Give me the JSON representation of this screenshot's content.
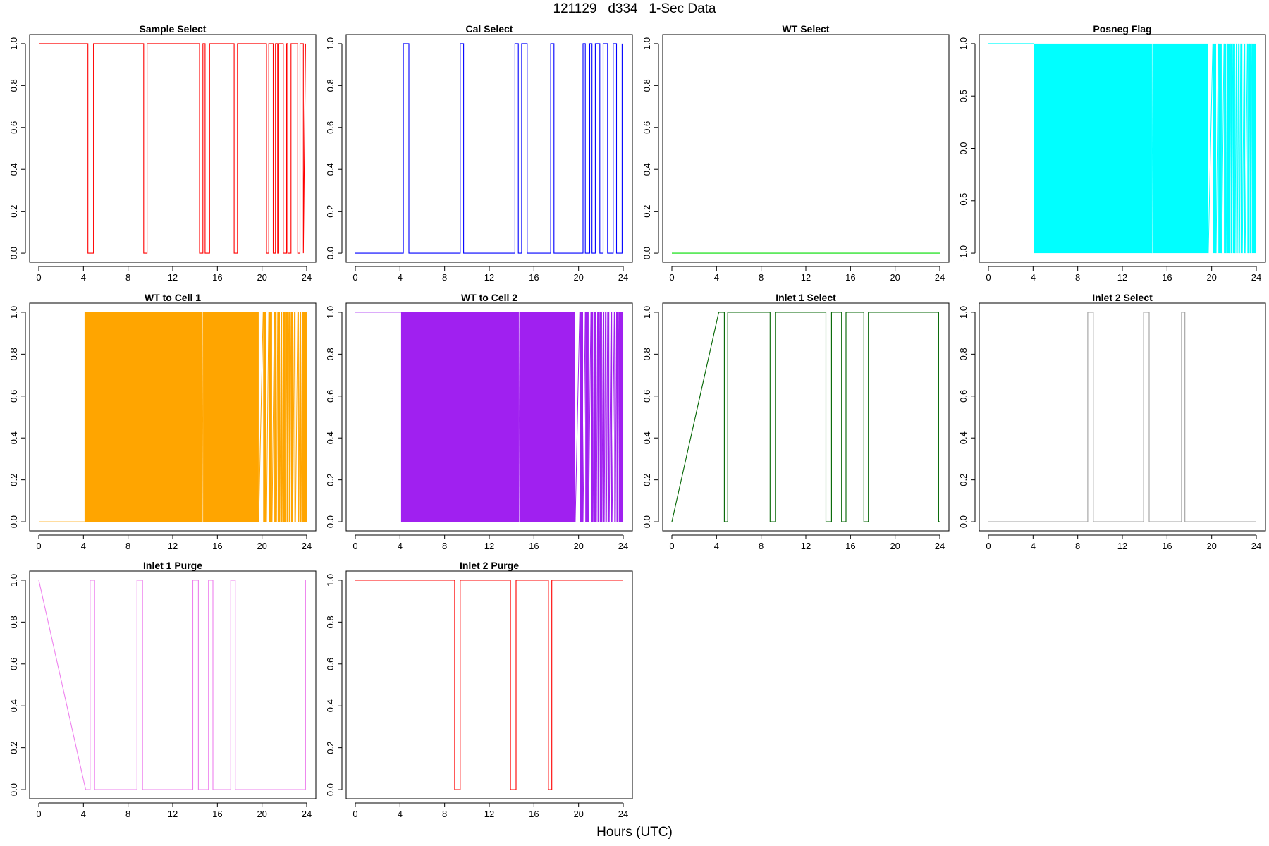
{
  "figure": {
    "title": "121129   d334   1-Sec Data",
    "xlabel": "Hours (UTC)"
  },
  "chart_data": [
    {
      "type": "line",
      "title": "Sample Select",
      "color": "#ff0000",
      "xlim": [
        0,
        24
      ],
      "ylim": [
        0,
        1
      ],
      "xticks": [
        0,
        4,
        8,
        12,
        16,
        20,
        24
      ],
      "yticks": [
        0.0,
        0.2,
        0.4,
        0.6,
        0.8,
        1.0
      ],
      "ytick_labels": [
        "0.0",
        "0.2",
        "0.4",
        "0.6",
        "0.8",
        "1.0"
      ],
      "x": [
        0,
        4.4,
        4.4,
        4.9,
        4.9,
        9.4,
        9.4,
        9.7,
        9.7,
        14.4,
        14.4,
        14.7,
        14.7,
        14.9,
        14.9,
        15.3,
        15.3,
        17.5,
        17.5,
        17.8,
        17.8,
        20.4,
        20.4,
        20.6,
        20.6,
        21.0,
        21.0,
        21.2,
        21.2,
        21.4,
        21.4,
        21.5,
        21.5,
        21.9,
        21.9,
        22.2,
        22.2,
        22.3,
        22.3,
        22.6,
        22.6,
        23.2,
        23.2,
        23.4,
        23.4,
        23.7,
        23.7,
        23.9
      ],
      "y": [
        1,
        1,
        0,
        0,
        1,
        1,
        0,
        0,
        1,
        1,
        0,
        0,
        1,
        1,
        0,
        0,
        1,
        1,
        0,
        0,
        1,
        1,
        0,
        0,
        1,
        1,
        0,
        0,
        1,
        1,
        0,
        0,
        1,
        1,
        0,
        0,
        1,
        1,
        0,
        0,
        1,
        1,
        0,
        0,
        1,
        1,
        0,
        1
      ]
    },
    {
      "type": "line",
      "title": "Cal Select",
      "color": "#0000ff",
      "xlim": [
        0,
        24
      ],
      "ylim": [
        0,
        1
      ],
      "xticks": [
        0,
        4,
        8,
        12,
        16,
        20,
        24
      ],
      "yticks": [
        0.0,
        0.2,
        0.4,
        0.6,
        0.8,
        1.0
      ],
      "ytick_labels": [
        "0.0",
        "0.2",
        "0.4",
        "0.6",
        "0.8",
        "1.0"
      ],
      "x": [
        0,
        4.3,
        4.3,
        4.8,
        4.8,
        9.4,
        9.4,
        9.7,
        9.7,
        14.3,
        14.3,
        14.6,
        14.6,
        14.9,
        14.9,
        15.4,
        15.4,
        17.5,
        17.5,
        17.8,
        17.8,
        20.4,
        20.4,
        20.6,
        20.6,
        21.0,
        21.0,
        21.2,
        21.2,
        21.5,
        21.5,
        21.9,
        21.9,
        22.2,
        22.2,
        22.6,
        22.6,
        23.1,
        23.1,
        23.4,
        23.4,
        23.9,
        23.9
      ],
      "y": [
        0,
        0,
        1,
        1,
        0,
        0,
        1,
        1,
        0,
        0,
        1,
        1,
        0,
        0,
        1,
        1,
        0,
        0,
        1,
        1,
        0,
        0,
        1,
        1,
        0,
        0,
        1,
        1,
        0,
        0,
        1,
        1,
        0,
        0,
        1,
        1,
        0,
        0,
        1,
        1,
        0,
        0,
        1
      ]
    },
    {
      "type": "line",
      "title": "WT Select",
      "color": "#00dd00",
      "xlim": [
        0,
        24
      ],
      "ylim": [
        0,
        1
      ],
      "xticks": [
        0,
        4,
        8,
        12,
        16,
        20,
        24
      ],
      "yticks": [
        0.0,
        0.2,
        0.4,
        0.6,
        0.8,
        1.0
      ],
      "ytick_labels": [
        "0.0",
        "0.2",
        "0.4",
        "0.6",
        "0.8",
        "1.0"
      ],
      "x": [
        0,
        24
      ],
      "y": [
        0,
        0
      ]
    },
    {
      "type": "area",
      "title": "Posneg Flag",
      "color": "#00ffff",
      "xlim": [
        0,
        24
      ],
      "ylim": [
        -1,
        1
      ],
      "xticks": [
        0,
        4,
        8,
        12,
        16,
        20,
        24
      ],
      "yticks": [
        -1.0,
        -0.5,
        0.0,
        0.5,
        1.0
      ],
      "ytick_labels": [
        "-1.0",
        "-0.5",
        "0.0",
        "0.5",
        "1.0"
      ],
      "baseline_value": 1,
      "baseline_range": [
        0,
        4.1
      ],
      "filled_ranges": [
        [
          4.1,
          14.65
        ],
        [
          14.72,
          19.7
        ],
        [
          20.1,
          20.4
        ],
        [
          20.6,
          20.9
        ],
        [
          21.1,
          21.3
        ],
        [
          21.4,
          21.6
        ],
        [
          21.7,
          21.8
        ],
        [
          21.9,
          22.1
        ],
        [
          22.2,
          22.3
        ],
        [
          22.4,
          22.5
        ],
        [
          22.6,
          22.75
        ],
        [
          22.9,
          23.0
        ],
        [
          23.2,
          23.3
        ],
        [
          23.4,
          23.5
        ],
        [
          23.6,
          24.0
        ]
      ]
    },
    {
      "type": "area",
      "title": "WT to Cell 1",
      "color": "#ffa500",
      "xlim": [
        0,
        24
      ],
      "ylim": [
        0,
        1
      ],
      "xticks": [
        0,
        4,
        8,
        12,
        16,
        20,
        24
      ],
      "yticks": [
        0.0,
        0.2,
        0.4,
        0.6,
        0.8,
        1.0
      ],
      "ytick_labels": [
        "0.0",
        "0.2",
        "0.4",
        "0.6",
        "0.8",
        "1.0"
      ],
      "baseline_value": 0,
      "baseline_range": [
        0,
        4.1
      ],
      "filled_ranges": [
        [
          4.1,
          14.65
        ],
        [
          14.72,
          19.7
        ],
        [
          20.1,
          20.4
        ],
        [
          20.6,
          20.9
        ],
        [
          21.1,
          21.3
        ],
        [
          21.4,
          21.6
        ],
        [
          21.7,
          21.8
        ],
        [
          21.9,
          22.1
        ],
        [
          22.2,
          22.3
        ],
        [
          22.4,
          22.5
        ],
        [
          22.6,
          22.75
        ],
        [
          22.9,
          23.0
        ],
        [
          23.2,
          23.3
        ],
        [
          23.4,
          23.5
        ],
        [
          23.6,
          24.0
        ]
      ]
    },
    {
      "type": "area",
      "title": "WT to Cell 2",
      "color": "#a020f0",
      "xlim": [
        0,
        24
      ],
      "ylim": [
        0,
        1
      ],
      "xticks": [
        0,
        4,
        8,
        12,
        16,
        20,
        24
      ],
      "yticks": [
        0.0,
        0.2,
        0.4,
        0.6,
        0.8,
        1.0
      ],
      "ytick_labels": [
        "0.0",
        "0.2",
        "0.4",
        "0.6",
        "0.8",
        "1.0"
      ],
      "baseline_value": 1,
      "baseline_range": [
        0,
        4.1
      ],
      "filled_ranges": [
        [
          4.1,
          14.65
        ],
        [
          14.72,
          19.7
        ],
        [
          20.1,
          20.4
        ],
        [
          20.6,
          20.9
        ],
        [
          21.1,
          21.3
        ],
        [
          21.4,
          21.6
        ],
        [
          21.7,
          21.8
        ],
        [
          21.9,
          22.1
        ],
        [
          22.2,
          22.3
        ],
        [
          22.4,
          22.5
        ],
        [
          22.6,
          22.75
        ],
        [
          22.9,
          23.0
        ],
        [
          23.2,
          23.3
        ],
        [
          23.4,
          23.5
        ],
        [
          23.6,
          24.0
        ]
      ]
    },
    {
      "type": "line",
      "title": "Inlet 1 Select",
      "color": "#006400",
      "xlim": [
        0,
        24
      ],
      "ylim": [
        0,
        1
      ],
      "xticks": [
        0,
        4,
        8,
        12,
        16,
        20,
        24
      ],
      "yticks": [
        0.0,
        0.2,
        0.4,
        0.6,
        0.8,
        1.0
      ],
      "ytick_labels": [
        "0.0",
        "0.2",
        "0.4",
        "0.6",
        "0.8",
        "1.0"
      ],
      "x": [
        0,
        4.2,
        4.7,
        4.7,
        5.0,
        5.0,
        8.8,
        8.8,
        9.3,
        9.3,
        13.8,
        13.8,
        14.3,
        14.3,
        15.2,
        15.2,
        15.6,
        15.6,
        17.2,
        17.2,
        17.6,
        17.6,
        23.9,
        23.9,
        24.0
      ],
      "y": [
        0,
        1,
        1,
        0,
        0,
        1,
        1,
        0,
        0,
        1,
        1,
        0,
        0,
        1,
        1,
        0,
        0,
        1,
        1,
        0,
        0,
        1,
        1,
        0,
        0
      ]
    },
    {
      "type": "line",
      "title": "Inlet 2 Select",
      "color": "#a0a0a0",
      "xlim": [
        0,
        24
      ],
      "ylim": [
        0,
        1
      ],
      "xticks": [
        0,
        4,
        8,
        12,
        16,
        20,
        24
      ],
      "yticks": [
        0.0,
        0.2,
        0.4,
        0.6,
        0.8,
        1.0
      ],
      "ytick_labels": [
        "0.0",
        "0.2",
        "0.4",
        "0.6",
        "0.8",
        "1.0"
      ],
      "x": [
        0,
        8.9,
        8.9,
        9.4,
        9.4,
        13.9,
        13.9,
        14.4,
        14.4,
        17.3,
        17.3,
        17.6,
        17.6,
        24.0
      ],
      "y": [
        0,
        0,
        1,
        1,
        0,
        0,
        1,
        1,
        0,
        0,
        1,
        1,
        0,
        0
      ]
    },
    {
      "type": "line",
      "title": "Inlet 1 Purge",
      "color": "#ee82ee",
      "xlim": [
        0,
        24
      ],
      "ylim": [
        0,
        1
      ],
      "xticks": [
        0,
        4,
        8,
        12,
        16,
        20,
        24
      ],
      "yticks": [
        0.0,
        0.2,
        0.4,
        0.6,
        0.8,
        1.0
      ],
      "ytick_labels": [
        "0.0",
        "0.2",
        "0.4",
        "0.6",
        "0.8",
        "1.0"
      ],
      "x": [
        0,
        4.2,
        4.6,
        4.6,
        5.0,
        5.0,
        8.8,
        8.8,
        9.3,
        9.3,
        13.8,
        13.8,
        14.3,
        14.3,
        15.2,
        15.2,
        15.6,
        15.6,
        17.2,
        17.2,
        17.6,
        17.6,
        23.9,
        23.9
      ],
      "y": [
        1,
        0,
        0,
        1,
        1,
        0,
        0,
        1,
        1,
        0,
        0,
        1,
        1,
        0,
        0,
        1,
        1,
        0,
        0,
        1,
        1,
        0,
        0,
        1
      ]
    },
    {
      "type": "line",
      "title": "Inlet 2 Purge",
      "color": "#ff0000",
      "xlim": [
        0,
        24
      ],
      "ylim": [
        0,
        1
      ],
      "xticks": [
        0,
        4,
        8,
        12,
        16,
        20,
        24
      ],
      "yticks": [
        0.0,
        0.2,
        0.4,
        0.6,
        0.8,
        1.0
      ],
      "ytick_labels": [
        "0.0",
        "0.2",
        "0.4",
        "0.6",
        "0.8",
        "1.0"
      ],
      "x": [
        0,
        8.9,
        8.9,
        9.4,
        9.4,
        13.9,
        13.9,
        14.4,
        14.4,
        17.3,
        17.3,
        17.6,
        17.6,
        24.0
      ],
      "y": [
        1,
        1,
        0,
        0,
        1,
        1,
        0,
        0,
        1,
        1,
        0,
        0,
        1,
        1
      ]
    }
  ]
}
